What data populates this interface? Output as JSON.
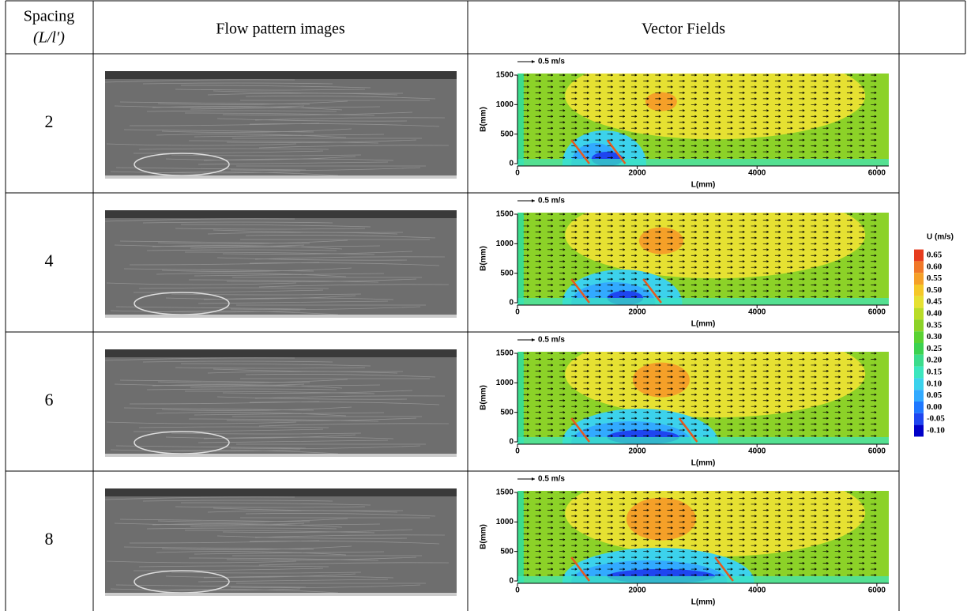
{
  "header": {
    "spacing": "Spacing",
    "ratio": "(L/l′)",
    "images": "Flow pattern images",
    "vectors": "Vector Fields"
  },
  "plot": {
    "scale_label": "0.5 m/s",
    "x_label": "L(mm)",
    "y_label": "B(mm)",
    "xlim": [
      0,
      6200
    ],
    "ylim": [
      0,
      1500
    ],
    "xticks": [
      0,
      2000,
      4000,
      6000
    ],
    "yticks": [
      0,
      500,
      1000,
      1500
    ]
  },
  "rows": [
    {
      "spacing": "2",
      "spur_dikes_mm": [
        900,
        1500
      ]
    },
    {
      "spacing": "4",
      "spur_dikes_mm": [
        900,
        2100
      ]
    },
    {
      "spacing": "6",
      "spur_dikes_mm": [
        900,
        2700
      ]
    },
    {
      "spacing": "8",
      "spur_dikes_mm": [
        900,
        3300
      ]
    }
  ],
  "colorbar": {
    "title": "U (m/s)",
    "ticks": [
      {
        "value": 0.65,
        "label": "0.65"
      },
      {
        "value": 0.6,
        "label": "0.60"
      },
      {
        "value": 0.55,
        "label": "0.55"
      },
      {
        "value": 0.5,
        "label": "0.50"
      },
      {
        "value": 0.45,
        "label": "0.45"
      },
      {
        "value": 0.4,
        "label": "0.40"
      },
      {
        "value": 0.35,
        "label": "0.35"
      },
      {
        "value": 0.3,
        "label": "0.30"
      },
      {
        "value": 0.25,
        "label": "0.25"
      },
      {
        "value": 0.2,
        "label": "0.20"
      },
      {
        "value": 0.15,
        "label": "0.15"
      },
      {
        "value": 0.1,
        "label": "0.10"
      },
      {
        "value": 0.05,
        "label": "0.05"
      },
      {
        "value": 0,
        "label": "0.00"
      },
      {
        "value": -0.05,
        "label": "-0.05"
      },
      {
        "value": -0.1,
        "label": "-0.10"
      }
    ],
    "colors": [
      "#e63c1e",
      "#f07828",
      "#f5a028",
      "#f5c828",
      "#e6e132",
      "#b9dc28",
      "#8cd228",
      "#5ad232",
      "#3cd250",
      "#3cdc8c",
      "#3ce6be",
      "#3cd2ec",
      "#32aaff",
      "#1e78ff",
      "#1e46f0",
      "#0000c8"
    ]
  }
}
